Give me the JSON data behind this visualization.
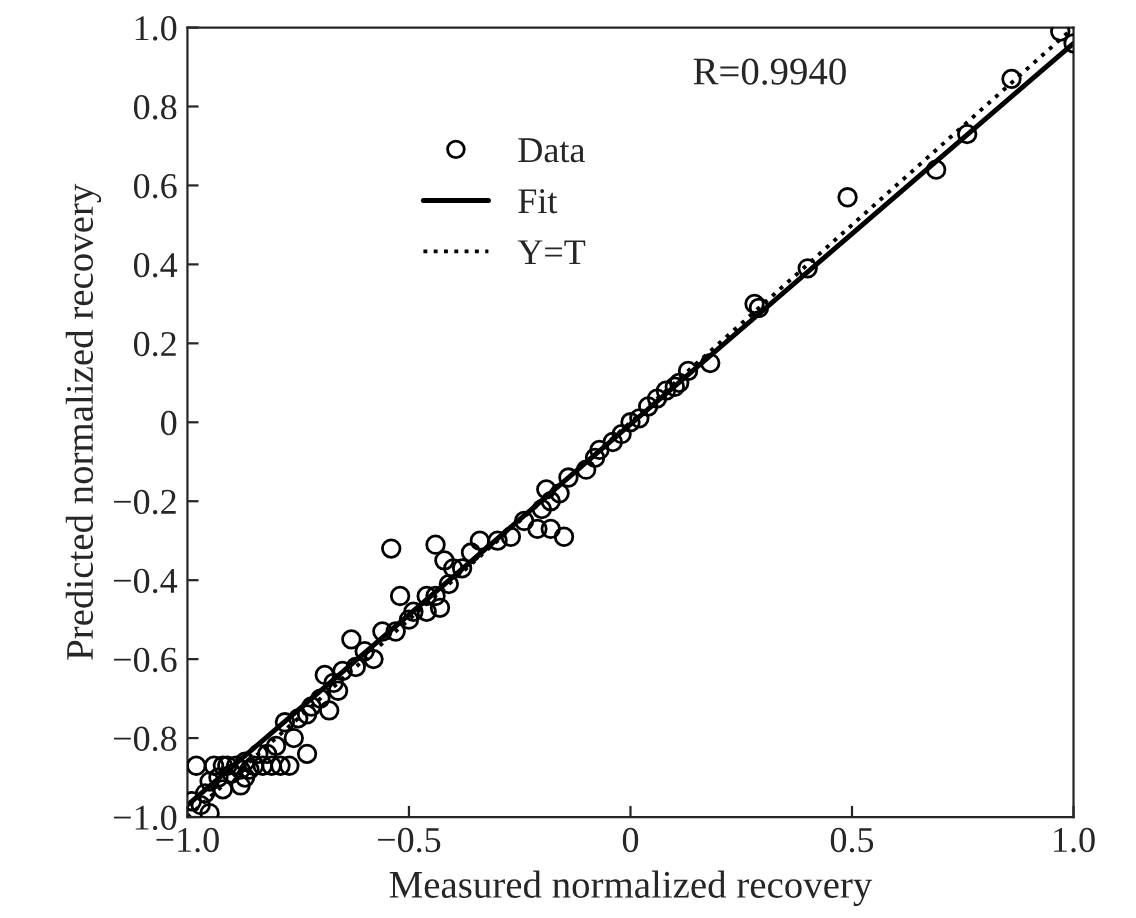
{
  "chart_data": {
    "type": "scatter",
    "xlabel": "Measured normalized recovery",
    "ylabel": "Predicted normalized recovery",
    "xlim": [
      -1.0,
      1.0
    ],
    "ylim": [
      -1.0,
      1.0
    ],
    "xticks": [
      {
        "value": -1.0,
        "label": "−1.0"
      },
      {
        "value": -0.5,
        "label": "−0.5"
      },
      {
        "value": 0,
        "label": "0"
      },
      {
        "value": 0.5,
        "label": "0.5"
      },
      {
        "value": 1.0,
        "label": "1.0"
      }
    ],
    "yticks": [
      {
        "value": -1.0,
        "label": "−1.0"
      },
      {
        "value": -0.8,
        "label": "−0.8"
      },
      {
        "value": -0.6,
        "label": "−0.6"
      },
      {
        "value": -0.4,
        "label": "−0.4"
      },
      {
        "value": -0.2,
        "label": "−0.2"
      },
      {
        "value": 0,
        "label": "0"
      },
      {
        "value": 0.2,
        "label": "0.2"
      },
      {
        "value": 0.4,
        "label": "0.4"
      },
      {
        "value": 0.6,
        "label": "0.6"
      },
      {
        "value": 0.8,
        "label": "0.8"
      },
      {
        "value": 1.0,
        "label": "1.0"
      }
    ],
    "grid": false,
    "legend": "top left",
    "annotations": [
      "R=0.9940"
    ],
    "series": [
      {
        "name": "Data",
        "marker": "circle",
        "color": "#000000",
        "x": [
          0.97,
          1.0,
          0.86,
          0.76,
          0.69,
          0.49,
          0.4,
          0.29,
          0.28,
          0.18,
          0.13,
          0.1,
          0.11,
          0.08,
          0.06,
          0.04,
          0.02,
          0.0,
          -0.02,
          -0.04,
          -0.07,
          -0.08,
          -0.1,
          -0.14,
          -0.16,
          -0.19,
          -0.18,
          -0.2,
          -0.21,
          -0.18,
          -0.15,
          -0.24,
          -0.27,
          -0.3,
          -0.34,
          -0.36,
          -0.38,
          -0.4,
          -0.42,
          -0.44,
          -0.41,
          -0.44,
          -0.46,
          -0.46,
          -0.43,
          -0.49,
          -0.5,
          -0.53,
          -0.52,
          -0.56,
          -0.54,
          -0.58,
          -0.6,
          -0.62,
          -0.63,
          -0.65,
          -0.67,
          -0.69,
          -0.7,
          -0.72,
          -0.73,
          -0.75,
          -0.76,
          -0.78,
          -0.8,
          -0.82,
          -0.84,
          -0.85,
          -0.83,
          -0.81,
          -0.79,
          -0.77,
          -0.87,
          -0.88,
          -0.89,
          -0.9,
          -0.91,
          -0.92,
          -0.93,
          -0.94,
          -0.95,
          -0.96,
          -0.98,
          -0.99,
          -0.97,
          -0.95,
          -0.87,
          -0.86,
          -0.88,
          -0.92,
          -0.73,
          -0.66,
          -0.68
        ],
        "values": [
          0.99,
          0.96,
          0.87,
          0.73,
          0.64,
          0.57,
          0.39,
          0.29,
          0.3,
          0.15,
          0.13,
          0.09,
          0.1,
          0.08,
          0.06,
          0.04,
          0.01,
          0.0,
          -0.03,
          -0.05,
          -0.07,
          -0.09,
          -0.12,
          -0.14,
          -0.18,
          -0.17,
          -0.2,
          -0.22,
          -0.27,
          -0.27,
          -0.29,
          -0.25,
          -0.29,
          -0.3,
          -0.3,
          -0.33,
          -0.37,
          -0.37,
          -0.35,
          -0.31,
          -0.41,
          -0.44,
          -0.44,
          -0.48,
          -0.47,
          -0.48,
          -0.5,
          -0.53,
          -0.44,
          -0.53,
          -0.32,
          -0.6,
          -0.58,
          -0.62,
          -0.55,
          -0.63,
          -0.66,
          -0.64,
          -0.7,
          -0.72,
          -0.74,
          -0.75,
          -0.8,
          -0.76,
          -0.82,
          -0.84,
          -0.84,
          -0.87,
          -0.87,
          -0.87,
          -0.87,
          -0.87,
          -0.86,
          -0.88,
          -0.87,
          -0.89,
          -0.87,
          -0.87,
          -0.9,
          -0.87,
          -0.91,
          -0.94,
          -0.87,
          -0.96,
          -0.97,
          -0.99,
          -0.9,
          -0.88,
          -0.92,
          -0.93,
          -0.84,
          -0.68,
          -0.73
        ]
      },
      {
        "name": "Fit",
        "type": "line",
        "line_style": "solid",
        "color": "#000000",
        "x": [
          -1.0,
          1.0
        ],
        "values": [
          -0.97,
          0.96
        ]
      },
      {
        "name": "Y=T",
        "type": "line",
        "line_style": "dotted",
        "color": "#000000",
        "x": [
          -1.0,
          1.0
        ],
        "values": [
          -1.0,
          1.0
        ]
      }
    ]
  }
}
